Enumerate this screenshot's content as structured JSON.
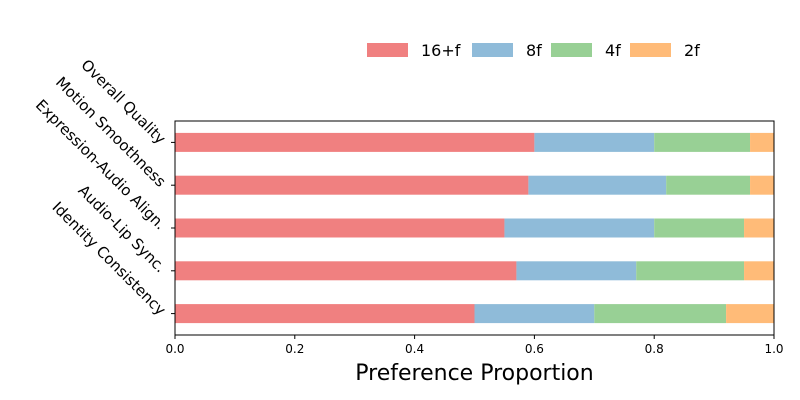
{
  "chart_data": {
    "type": "bar",
    "orientation": "horizontal",
    "stacked": true,
    "categories": [
      "Overall Quality",
      "Motion Smoothness",
      "Expression-Audio Align.",
      "Audio-Lip Sync.",
      "Identity Consistency"
    ],
    "series": [
      {
        "name": "16+f",
        "color": "#f08080",
        "values": [
          0.6,
          0.59,
          0.55,
          0.57,
          0.5
        ]
      },
      {
        "name": "8f",
        "color": "#8fbbd9",
        "values": [
          0.2,
          0.23,
          0.25,
          0.2,
          0.2
        ]
      },
      {
        "name": "4f",
        "color": "#98d095",
        "values": [
          0.16,
          0.14,
          0.15,
          0.18,
          0.22
        ]
      },
      {
        "name": "2f",
        "color": "#ffbb78",
        "values": [
          0.04,
          0.04,
          0.05,
          0.05,
          0.08
        ]
      }
    ],
    "xlabel": "Preference Proportion",
    "ylabel": "",
    "title": "",
    "xlim": [
      0,
      1
    ],
    "xticks": [
      "0.0",
      "0.2",
      "0.4",
      "0.6",
      "0.8",
      "1.0"
    ],
    "grid": false,
    "legend": "top-right, outside plot, horizontal"
  }
}
